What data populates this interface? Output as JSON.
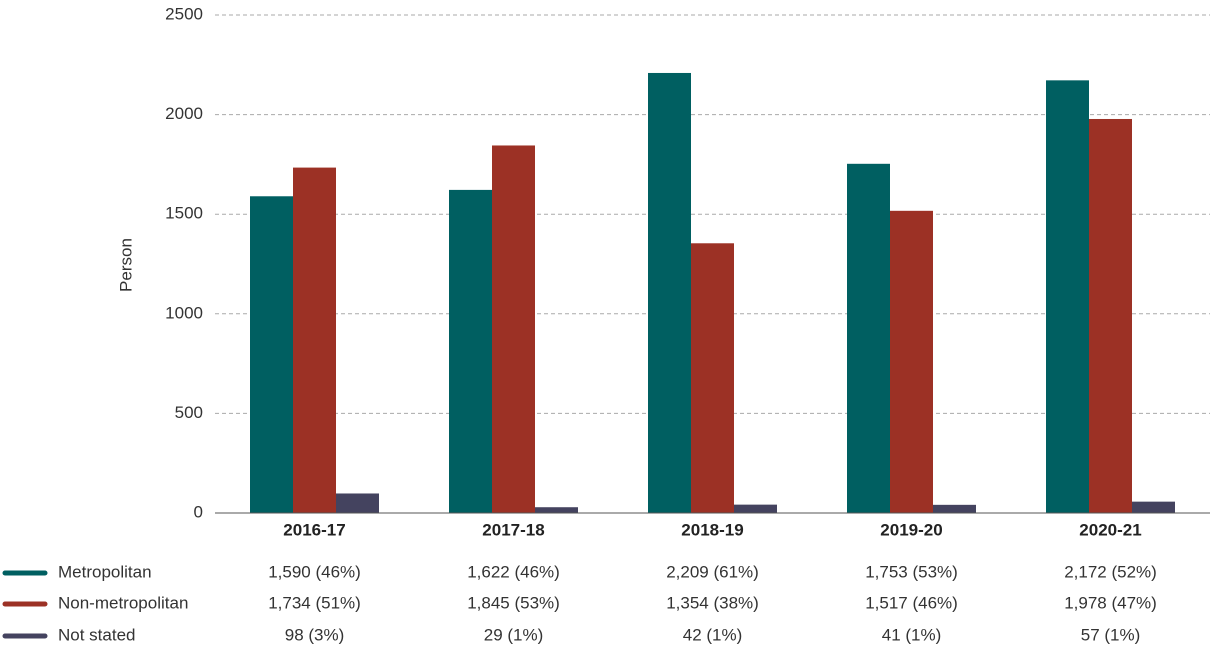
{
  "chart_data": {
    "type": "bar",
    "y_label": "Person",
    "categories": [
      "2016-17",
      "2017-18",
      "2018-19",
      "2019-20",
      "2020-21"
    ],
    "series": [
      {
        "name": "Metropolitan",
        "color": "#005f61",
        "values": [
          1590,
          1622,
          2209,
          1753,
          2172
        ],
        "value_labels": [
          "1,590 (46%)",
          "1,622 (46%)",
          "2,209 (61%)",
          "1,753 (53%)",
          "2,172 (52%)"
        ]
      },
      {
        "name": "Non-metropolitan",
        "color": "#9c3125",
        "values": [
          1734,
          1845,
          1354,
          1517,
          1978
        ],
        "value_labels": [
          "1,734 (51%)",
          "1,845 (53%)",
          "1,354 (38%)",
          "1,517 (46%)",
          "1,978 (47%)"
        ]
      },
      {
        "name": "Not stated",
        "color": "#44435f",
        "values": [
          98,
          29,
          42,
          41,
          57
        ],
        "value_labels": [
          "98 (3%)",
          "29 (1%)",
          "42 (1%)",
          "41 (1%)",
          "57 (1%)"
        ]
      }
    ],
    "ylim": [
      0,
      2500
    ],
    "yticks": [
      0,
      500,
      1000,
      1500,
      2000,
      2500
    ],
    "grid": true
  }
}
